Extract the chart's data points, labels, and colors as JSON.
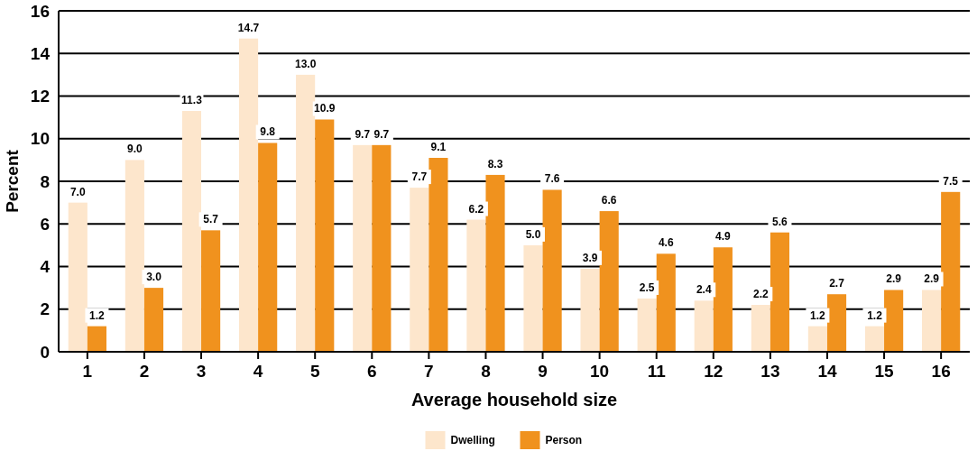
{
  "chart_data": {
    "type": "bar",
    "xlabel": "Average household size",
    "ylabel": "Percent",
    "categories": [
      "1",
      "2",
      "3",
      "4",
      "5",
      "6",
      "7",
      "8",
      "9",
      "10",
      "11",
      "12",
      "13",
      "14",
      "15",
      "16"
    ],
    "series": [
      {
        "name": "Dwelling",
        "color": "#fde6cc",
        "values": [
          7.0,
          9.0,
          11.3,
          14.7,
          13.0,
          9.7,
          7.7,
          6.2,
          5.0,
          3.9,
          2.5,
          2.4,
          2.2,
          1.2,
          1.2,
          2.9
        ],
        "value_labels": [
          "7.0",
          "9.0",
          "11.3",
          "14.7",
          "13.0",
          "9.7",
          "7.7",
          "6.2",
          "5.0",
          "3.9",
          "2.5",
          "2.4",
          "2.2",
          "1.2",
          "1.2",
          "2.9"
        ]
      },
      {
        "name": "Person",
        "color": "#f0921e",
        "values": [
          1.2,
          3.0,
          5.7,
          9.8,
          10.9,
          9.7,
          9.1,
          8.3,
          7.6,
          6.6,
          4.6,
          4.9,
          5.6,
          2.7,
          2.9,
          7.5
        ],
        "value_labels": [
          "1.2",
          "3.0",
          "5.7",
          "9.8",
          "10.9",
          "9.7",
          "9.1",
          "8.3",
          "7.6",
          "6.6",
          "4.6",
          "4.9",
          "5.6",
          "2.7",
          "2.9",
          "7.5"
        ]
      }
    ],
    "ylim": [
      0,
      16
    ],
    "yticks": [
      0,
      2,
      4,
      6,
      8,
      10,
      12,
      14,
      16
    ],
    "grid": "y",
    "legend": "bottom"
  }
}
